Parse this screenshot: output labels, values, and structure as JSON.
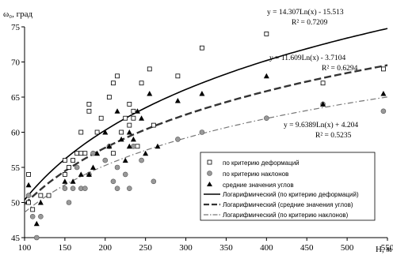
{
  "chart_data": {
    "type": "scatter",
    "ylabel": "ω₀, град",
    "xlabel": "Н, м",
    "xlim": [
      100,
      550
    ],
    "ylim": [
      45,
      75
    ],
    "xticks": [
      100,
      150,
      200,
      250,
      300,
      350,
      400,
      450,
      500,
      550
    ],
    "yticks": [
      45,
      50,
      55,
      60,
      65,
      70,
      75
    ],
    "grid": false,
    "legend_position": "bottom-right",
    "series": [
      {
        "name": "по критерию деформаций",
        "marker": "square-open",
        "points": [
          [
            105,
            54
          ],
          [
            105,
            50
          ],
          [
            110,
            49
          ],
          [
            120,
            51
          ],
          [
            130,
            51
          ],
          [
            150,
            54
          ],
          [
            150,
            56
          ],
          [
            155,
            55
          ],
          [
            160,
            56
          ],
          [
            165,
            57
          ],
          [
            170,
            60
          ],
          [
            170,
            57
          ],
          [
            175,
            57
          ],
          [
            180,
            64
          ],
          [
            180,
            63
          ],
          [
            190,
            60
          ],
          [
            195,
            62
          ],
          [
            205,
            65
          ],
          [
            210,
            67
          ],
          [
            215,
            68
          ],
          [
            210,
            57
          ],
          [
            220,
            60
          ],
          [
            225,
            62
          ],
          [
            230,
            64
          ],
          [
            230,
            61
          ],
          [
            235,
            63
          ],
          [
            235,
            62
          ],
          [
            240,
            58
          ],
          [
            245,
            67
          ],
          [
            255,
            69
          ],
          [
            260,
            61
          ],
          [
            290,
            68
          ],
          [
            320,
            72
          ],
          [
            400,
            74
          ],
          [
            470,
            67
          ],
          [
            545,
            69
          ]
        ]
      },
      {
        "name": "по критерию наклонов",
        "marker": "circle-gray",
        "points": [
          [
            105,
            51
          ],
          [
            110,
            48
          ],
          [
            115,
            45
          ],
          [
            120,
            48
          ],
          [
            150,
            52
          ],
          [
            155,
            50
          ],
          [
            160,
            52
          ],
          [
            165,
            55
          ],
          [
            170,
            52
          ],
          [
            175,
            52
          ],
          [
            180,
            54
          ],
          [
            185,
            57
          ],
          [
            200,
            56
          ],
          [
            205,
            58
          ],
          [
            210,
            53
          ],
          [
            215,
            55
          ],
          [
            215,
            52
          ],
          [
            225,
            54
          ],
          [
            230,
            52
          ],
          [
            235,
            58
          ],
          [
            245,
            56
          ],
          [
            260,
            53
          ],
          [
            290,
            59
          ],
          [
            320,
            60
          ],
          [
            400,
            62
          ],
          [
            470,
            64
          ],
          [
            545,
            63
          ]
        ]
      },
      {
        "name": "средние значения углов",
        "marker": "triangle-black",
        "points": [
          [
            105,
            52.5
          ],
          [
            115,
            47
          ],
          [
            120,
            50
          ],
          [
            150,
            53
          ],
          [
            160,
            53
          ],
          [
            170,
            54
          ],
          [
            180,
            54
          ],
          [
            185,
            55
          ],
          [
            190,
            57
          ],
          [
            200,
            60
          ],
          [
            205,
            58
          ],
          [
            215,
            63
          ],
          [
            220,
            59
          ],
          [
            225,
            56
          ],
          [
            230,
            58
          ],
          [
            230,
            60
          ],
          [
            235,
            59
          ],
          [
            240,
            63
          ],
          [
            245,
            62
          ],
          [
            250,
            57
          ],
          [
            255,
            65.5
          ],
          [
            265,
            58
          ],
          [
            290,
            64.5
          ],
          [
            320,
            65.5
          ],
          [
            400,
            68
          ],
          [
            470,
            64
          ],
          [
            545,
            65.5
          ]
        ]
      }
    ],
    "trendlines": [
      {
        "name": "Логарифмический (по критерию деформаций)",
        "a": 14.307,
        "b": -15.513,
        "style": "solid",
        "equation": "y = 14.307Ln(x) - 15.513",
        "r2": "R² = 0.7209"
      },
      {
        "name": "Логарифмический (средние значения углов)",
        "a": 11.609,
        "b": -3.7104,
        "style": "dashed",
        "equation": "y = 11.609Ln(x) - 3.7104",
        "r2": "R² = 0.6294"
      },
      {
        "name": "Логарифмический (по критерию наклонов)",
        "a": 9.6389,
        "b": 4.204,
        "style": "dashdot",
        "equation": "y = 9.6389Ln(x) + 4.204",
        "r2": "R² = 0.5235"
      }
    ]
  }
}
